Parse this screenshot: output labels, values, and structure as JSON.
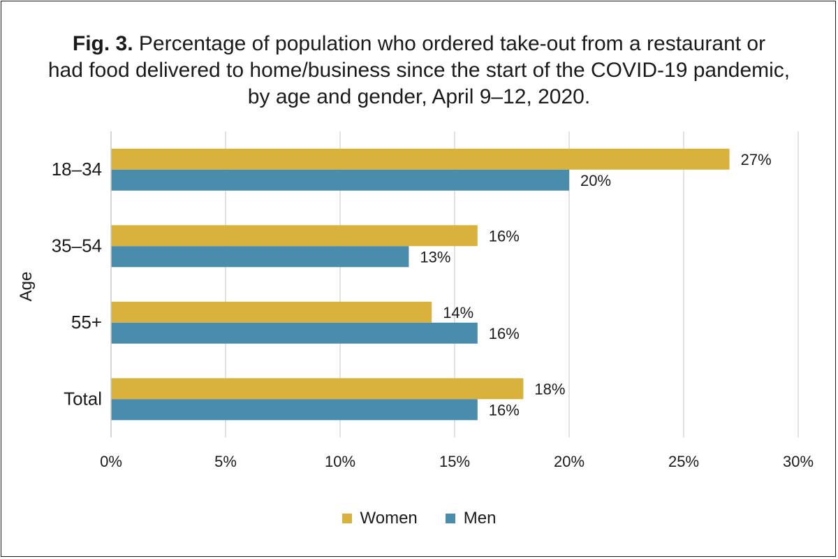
{
  "figure": {
    "label": "Fig. 3.",
    "title_line1": "Percentage of population who ordered take-out from a restaurant or",
    "title_line2": "had food delivered to home/business since the start of the COVID-19 pandemic,",
    "title_line3": "by age and gender, April 9–12, 2020."
  },
  "chart_data": {
    "type": "bar",
    "orientation": "horizontal",
    "categories": [
      "18–34",
      "35–54",
      "55+",
      "Total"
    ],
    "series": [
      {
        "name": "Women",
        "values": [
          27,
          16,
          14,
          18
        ],
        "data_labels": [
          "27%",
          "16%",
          "14%",
          "18%"
        ],
        "color": "#d9b23e"
      },
      {
        "name": "Men",
        "values": [
          20,
          13,
          16,
          16
        ],
        "data_labels": [
          "20%",
          "13%",
          "16%",
          "16%"
        ],
        "color": "#4a8cab"
      }
    ],
    "xlim": [
      0,
      30
    ],
    "x_ticks": [
      0,
      5,
      10,
      15,
      20,
      25,
      30
    ],
    "x_tick_labels": [
      "0%",
      "5%",
      "10%",
      "15%",
      "20%",
      "25%",
      "30%"
    ],
    "ylabel": "Age",
    "xlabel": "",
    "grid": "vertical",
    "legend_position": "bottom"
  }
}
